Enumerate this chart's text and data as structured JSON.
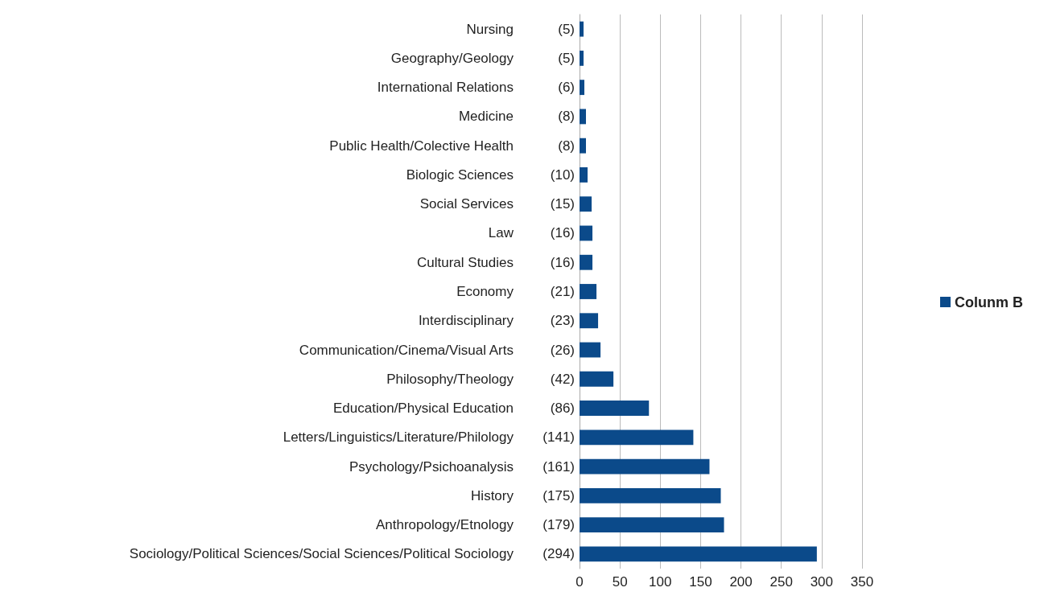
{
  "chart_data": {
    "type": "bar",
    "orientation": "horizontal",
    "categories": [
      "Nursing",
      "Geography/Geology",
      "International Relations",
      "Medicine",
      "Public Health/Colective Health",
      "Biologic Sciences",
      "Social Services",
      "Law",
      "Cultural Studies",
      "Economy",
      "Interdisciplinary",
      "Communication/Cinema/Visual Arts",
      "Philosophy/Theology",
      "Education/Physical Education",
      "Letters/Linguistics/Literature/Philology",
      "Psychology/Psichoanalysis",
      "History",
      "Anthropology/Etnology",
      "Sociology/Political Sciences/Social Sciences/Political Sociology"
    ],
    "series": [
      {
        "name": "Colunm B",
        "color": "#0b4a8a",
        "values": [
          5,
          5,
          6,
          8,
          8,
          10,
          15,
          16,
          16,
          21,
          23,
          26,
          42,
          86,
          141,
          161,
          175,
          179,
          294
        ],
        "value_labels": [
          "(5)",
          "(5)",
          "(6)",
          "(8)",
          "(8)",
          "(10)",
          "(15)",
          "(16)",
          "(16)",
          "(21)",
          "(23)",
          "(26)",
          "(42)",
          "(86)",
          "(141)",
          "(161)",
          "(175)",
          "(179)",
          "(294)"
        ]
      }
    ],
    "xlim": [
      0,
      350
    ],
    "xticks": [
      0,
      50,
      100,
      150,
      200,
      250,
      300,
      350
    ],
    "grid": "x",
    "legend": "right"
  }
}
